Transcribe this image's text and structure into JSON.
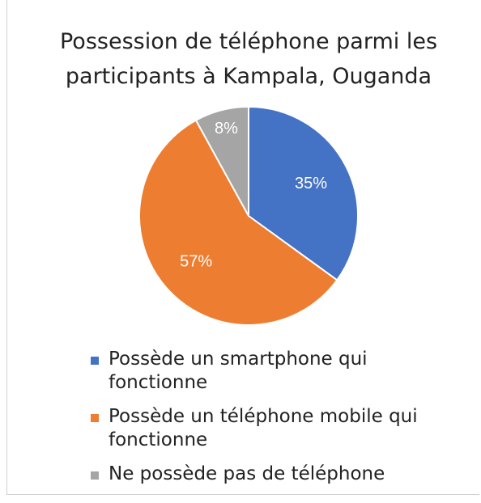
{
  "chart_data": {
    "type": "pie",
    "title": "Possession de téléphone parmi les participants à Kampala, Ouganda",
    "categories": [
      "Possède un smartphone qui fonctionne",
      "Possède un téléphone mobile qui fonctionne",
      "Ne possède pas de téléphone"
    ],
    "values": [
      35,
      57,
      8
    ],
    "value_labels": [
      "35%",
      "57%",
      "8%"
    ],
    "colors": [
      "#4472c4",
      "#ed7d31",
      "#a5a5a5"
    ],
    "legend": "bottom"
  }
}
